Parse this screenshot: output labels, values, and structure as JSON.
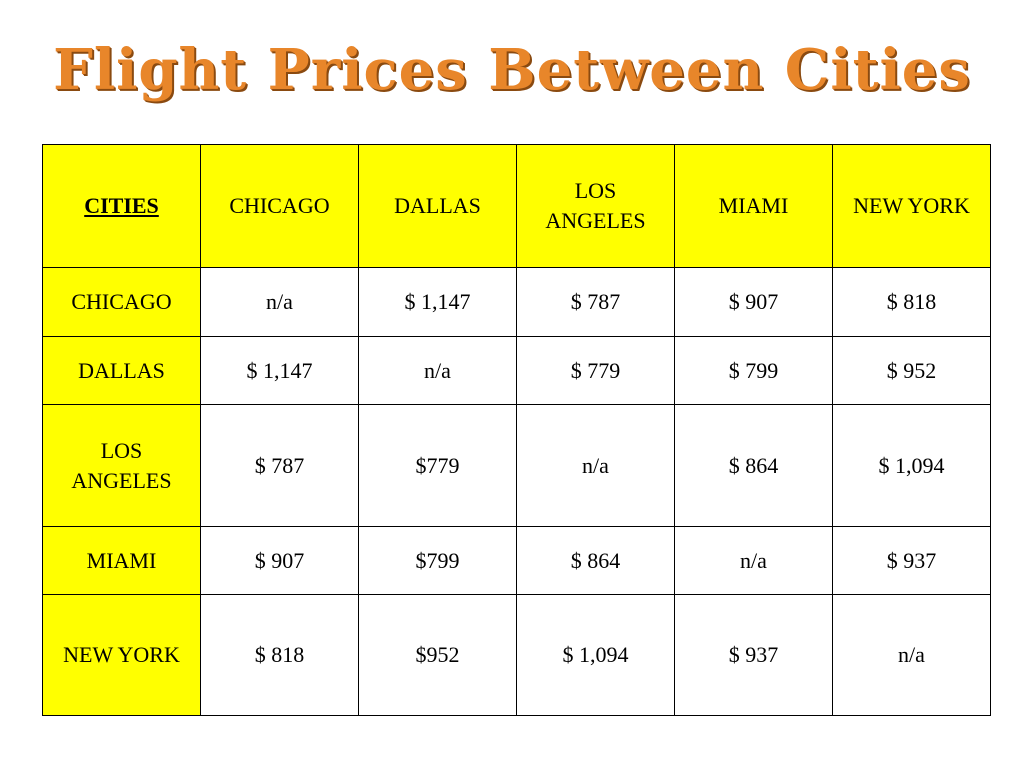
{
  "title": "Flight Prices Between Cities",
  "colors": {
    "header_fill": "#ffff00",
    "title_color": "#e8862a"
  },
  "table": {
    "corner_label": "CITIES",
    "columns": [
      "CHICAGO",
      "DALLAS",
      "LOS ANGELES",
      "MIAMI",
      "NEW YORK"
    ],
    "rows": [
      {
        "city": "CHICAGO",
        "cells": [
          "n/a",
          "$ 1,147",
          "$ 787",
          "$ 907",
          "$ 818"
        ]
      },
      {
        "city": "DALLAS",
        "cells": [
          "$ 1,147",
          "n/a",
          "$ 779",
          "$ 799",
          "$ 952"
        ]
      },
      {
        "city": "LOS ANGELES",
        "cells": [
          "$ 787",
          "$779",
          "n/a",
          "$ 864",
          "$ 1,094"
        ]
      },
      {
        "city": "MIAMI",
        "cells": [
          "$ 907",
          "$799",
          "$ 864",
          "n/a",
          "$ 937"
        ]
      },
      {
        "city": "NEW YORK",
        "cells": [
          "$ 818",
          "$952",
          "$ 1,094",
          "$ 937",
          "n/a"
        ]
      }
    ]
  }
}
